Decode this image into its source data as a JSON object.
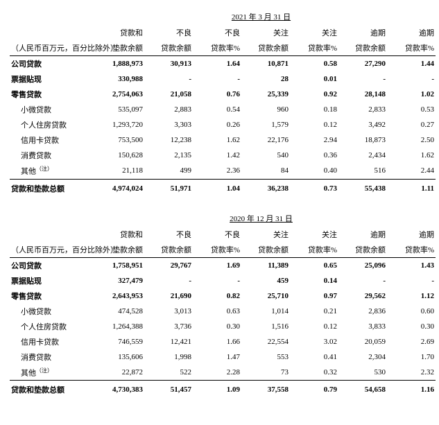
{
  "unit_note": "（人民币百万元，百分比除外）",
  "columns": [
    {
      "line1": "贷款和",
      "line2": "垫款余额"
    },
    {
      "line1": "不良",
      "line2": "贷款余额"
    },
    {
      "line1": "不良",
      "line2": "贷款率%"
    },
    {
      "line1": "关注",
      "line2": "贷款余额"
    },
    {
      "line1": "关注",
      "line2": "贷款率%"
    },
    {
      "line1": "逾期",
      "line2": "贷款余额"
    },
    {
      "line1": "逾期",
      "line2": "贷款率%"
    }
  ],
  "tables": [
    {
      "date": "2021 年 3 月 31 日",
      "rows": [
        {
          "label": "公司贷款",
          "bold": true,
          "indent": 0,
          "cells": [
            "1,888,973",
            "30,913",
            "1.64",
            "10,871",
            "0.58",
            "27,290",
            "1.44"
          ]
        },
        {
          "label": "票据贴现",
          "bold": true,
          "indent": 0,
          "cells": [
            "330,988",
            "-",
            "-",
            "28",
            "0.01",
            "-",
            "-"
          ]
        },
        {
          "label": "零售贷款",
          "bold": true,
          "indent": 0,
          "cells": [
            "2,754,063",
            "21,058",
            "0.76",
            "25,339",
            "0.92",
            "28,148",
            "1.02"
          ]
        },
        {
          "label": "小微贷款",
          "bold": false,
          "indent": 1,
          "cells": [
            "535,097",
            "2,883",
            "0.54",
            "960",
            "0.18",
            "2,833",
            "0.53"
          ]
        },
        {
          "label": "个人住房贷款",
          "bold": false,
          "indent": 1,
          "cells": [
            "1,293,720",
            "3,303",
            "0.26",
            "1,579",
            "0.12",
            "3,492",
            "0.27"
          ]
        },
        {
          "label": "信用卡贷款",
          "bold": false,
          "indent": 1,
          "cells": [
            "753,500",
            "12,238",
            "1.62",
            "22,176",
            "2.94",
            "18,873",
            "2.50"
          ]
        },
        {
          "label": "消费贷款",
          "bold": false,
          "indent": 1,
          "cells": [
            "150,628",
            "2,135",
            "1.42",
            "540",
            "0.36",
            "2,434",
            "1.62"
          ]
        },
        {
          "label": "其他",
          "note": true,
          "bold": false,
          "indent": 1,
          "cells": [
            "21,118",
            "499",
            "2.36",
            "84",
            "0.40",
            "516",
            "2.44"
          ]
        }
      ],
      "total": {
        "label": "贷款和垫款总额",
        "cells": [
          "4,974,024",
          "51,971",
          "1.04",
          "36,238",
          "0.73",
          "55,438",
          "1.11"
        ]
      }
    },
    {
      "date": "2020 年 12 月 31 日",
      "rows": [
        {
          "label": "公司贷款",
          "bold": true,
          "indent": 0,
          "cells": [
            "1,758,951",
            "29,767",
            "1.69",
            "11,389",
            "0.65",
            "25,096",
            "1.43"
          ]
        },
        {
          "label": "票据贴现",
          "bold": true,
          "indent": 0,
          "cells": [
            "327,479",
            "-",
            "-",
            "459",
            "0.14",
            "-",
            "-"
          ]
        },
        {
          "label": "零售贷款",
          "bold": true,
          "indent": 0,
          "cells": [
            "2,643,953",
            "21,690",
            "0.82",
            "25,710",
            "0.97",
            "29,562",
            "1.12"
          ]
        },
        {
          "label": "小微贷款",
          "bold": false,
          "indent": 1,
          "cells": [
            "474,528",
            "3,013",
            "0.63",
            "1,014",
            "0.21",
            "2,836",
            "0.60"
          ]
        },
        {
          "label": "个人住房贷款",
          "bold": false,
          "indent": 1,
          "cells": [
            "1,264,388",
            "3,736",
            "0.30",
            "1,516",
            "0.12",
            "3,833",
            "0.30"
          ]
        },
        {
          "label": "信用卡贷款",
          "bold": false,
          "indent": 1,
          "cells": [
            "746,559",
            "12,421",
            "1.66",
            "22,554",
            "3.02",
            "20,059",
            "2.69"
          ]
        },
        {
          "label": "消费贷款",
          "bold": false,
          "indent": 1,
          "cells": [
            "135,606",
            "1,998",
            "1.47",
            "553",
            "0.41",
            "2,304",
            "1.70"
          ]
        },
        {
          "label": "其他",
          "note": true,
          "bold": false,
          "indent": 1,
          "cells": [
            "22,872",
            "522",
            "2.28",
            "73",
            "0.32",
            "530",
            "2.32"
          ]
        }
      ],
      "total": {
        "label": "贷款和垫款总额",
        "cells": [
          "4,730,383",
          "51,457",
          "1.09",
          "37,558",
          "0.79",
          "54,658",
          "1.16"
        ]
      }
    }
  ],
  "note_marker": "（注）"
}
